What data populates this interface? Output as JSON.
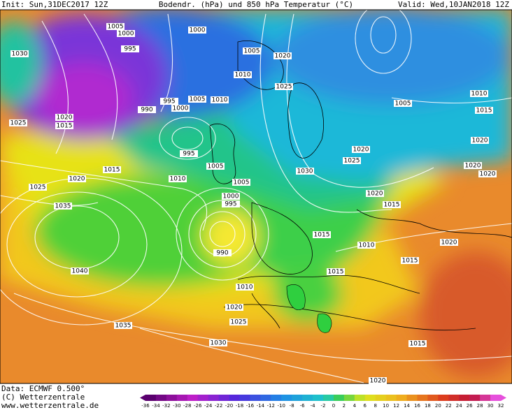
{
  "header": {
    "init": "Init: Sun,31DEC2017 12Z",
    "title": "Bodendr. (hPa) und 850 hPa Temperatur (°C)",
    "valid": "Valid: Wed,10JAN2018 12Z"
  },
  "footer": {
    "data": "Data: ECMWF  0.500°",
    "copyright": "(C) Wetterzentrale",
    "url": "www.wetterzentrale.de"
  },
  "legend": {
    "ticks": [
      -36,
      -34,
      -32,
      -30,
      -28,
      -26,
      -24,
      -22,
      -20,
      -18,
      -16,
      -14,
      -12,
      -10,
      -8,
      -6,
      -4,
      -2,
      0,
      2,
      4,
      6,
      8,
      10,
      12,
      14,
      16,
      18,
      20,
      22,
      24,
      26,
      28,
      30,
      32
    ]
  },
  "isobar_labels": [
    "1005",
    "1000",
    "995",
    "1030",
    "990",
    "995",
    "1000",
    "1005",
    "1010",
    "1005",
    "1010",
    "1020",
    "1025",
    "1020",
    "1015",
    "1025",
    "995",
    "1005",
    "1015",
    "1010",
    "1020",
    "1025",
    "1005",
    "1000",
    "995",
    "1035",
    "1040",
    "990",
    "1015",
    "1010",
    "1015",
    "1010",
    "1020",
    "1035",
    "1030",
    "1025",
    "1030",
    "1020",
    "1025",
    "1020",
    "1015",
    "1020",
    "1015",
    "1015",
    "1020",
    "1005",
    "1010",
    "1015",
    "1020",
    "1020",
    "1020",
    "1000"
  ]
}
